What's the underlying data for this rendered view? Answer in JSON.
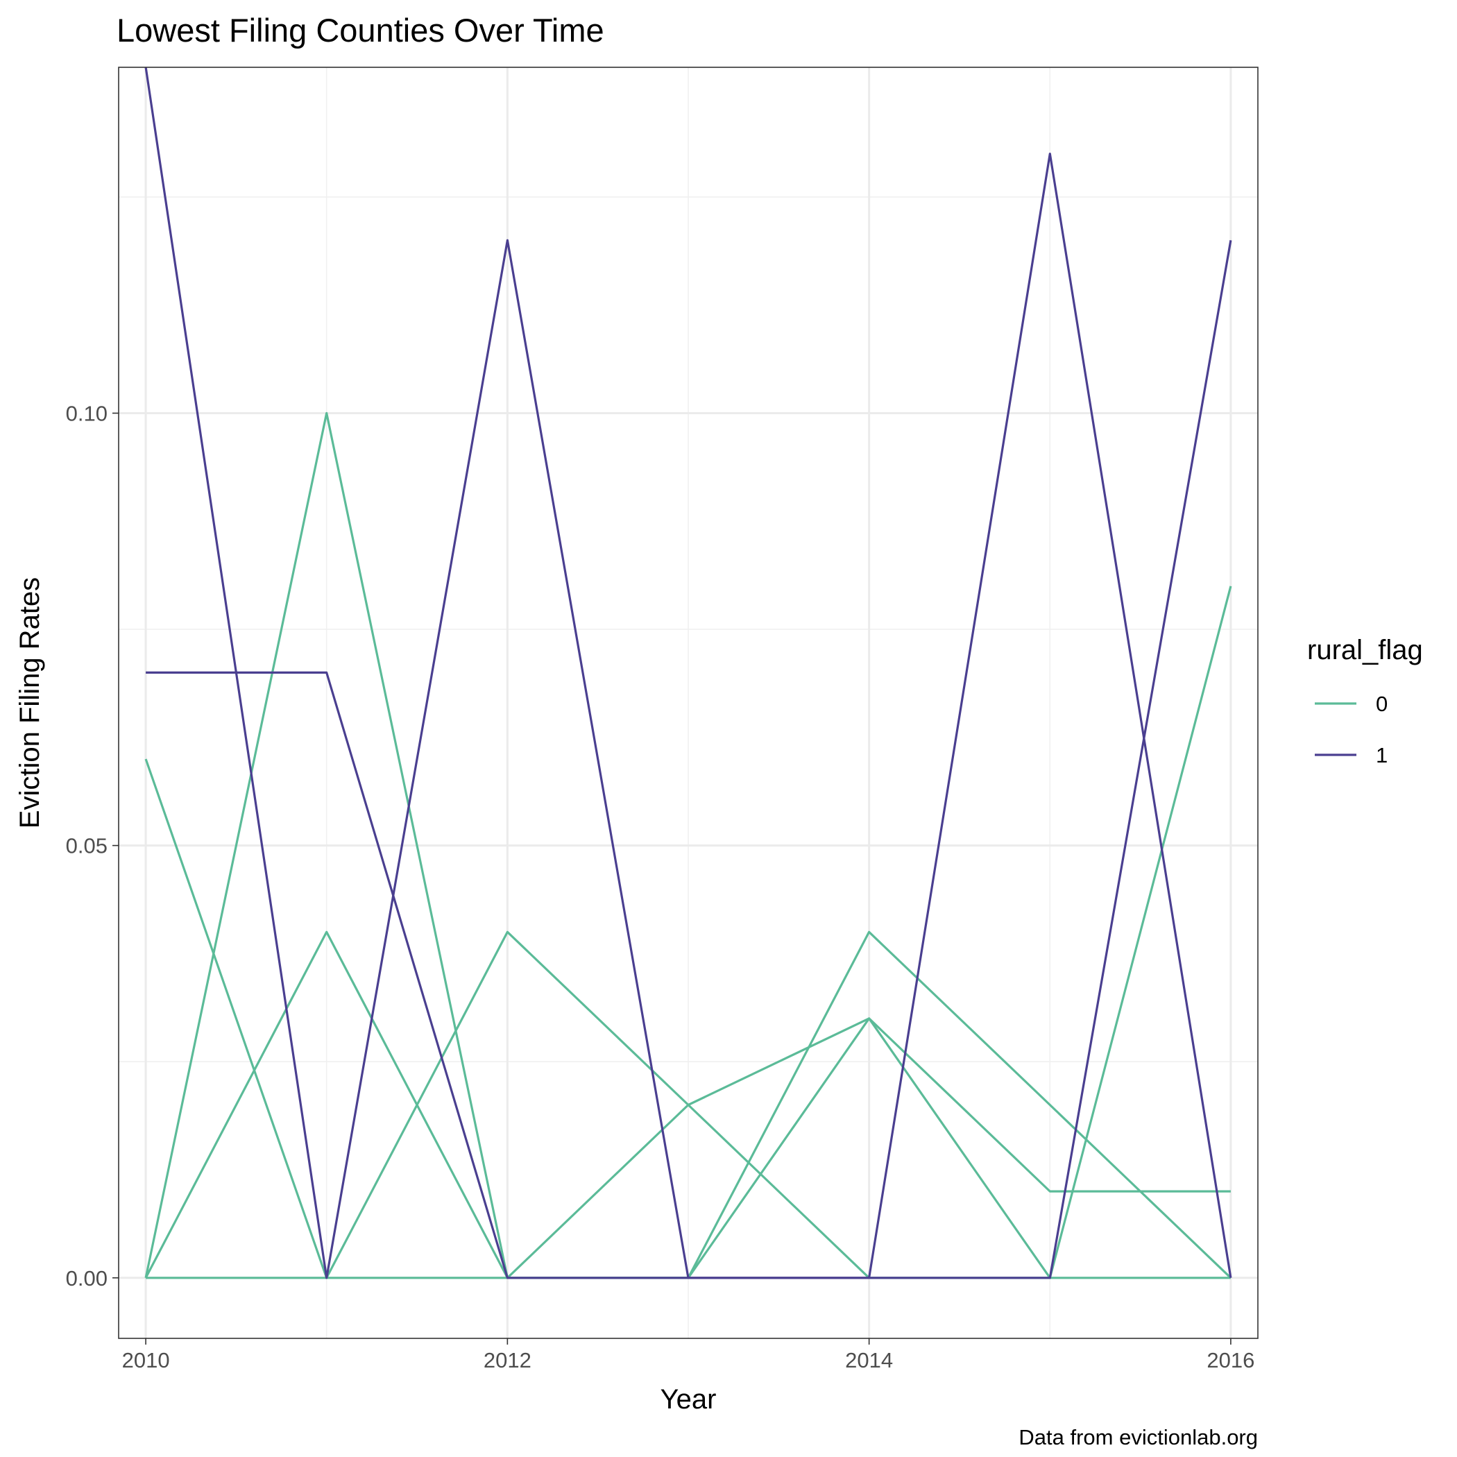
{
  "chart_data": {
    "type": "line",
    "title": "Lowest Filing Counties Over Time",
    "xlabel": "Year",
    "ylabel": "Eviction Filing Rates",
    "caption": "Data from evictionlab.org",
    "xlim": [
      2009.85,
      2016.15
    ],
    "ylim": [
      -0.007,
      0.14
    ],
    "x_ticks": [
      2010,
      2012,
      2014,
      2016
    ],
    "x_tick_labels": [
      "2010",
      "2012",
      "2014",
      "2016"
    ],
    "y_ticks": [
      0.0,
      0.05,
      0.1
    ],
    "y_tick_labels": [
      "0.00",
      "0.05",
      "0.10"
    ],
    "grid": true,
    "legend": {
      "title": "rural_flag",
      "position": "right",
      "entries": [
        {
          "label": "0",
          "color": "#5bbb98"
        },
        {
          "label": "1",
          "color": "#4a3f90"
        }
      ]
    },
    "x": [
      2010,
      2011,
      2012,
      2013,
      2014,
      2015,
      2016
    ],
    "series": [
      {
        "group": "0",
        "color": "#5bbb98",
        "values": [
          0.06,
          0.0,
          0.04,
          0.02,
          0.0,
          0.0,
          0.08
        ]
      },
      {
        "group": "0",
        "color": "#5bbb98",
        "values": [
          0.0,
          0.1,
          0.0,
          0.0,
          0.04,
          0.02,
          0.0
        ]
      },
      {
        "group": "0",
        "color": "#5bbb98",
        "values": [
          0.0,
          0.04,
          0.0,
          0.02,
          0.03,
          0.01,
          0.01
        ]
      },
      {
        "group": "0",
        "color": "#5bbb98",
        "values": [
          0.0,
          0.0,
          0.0,
          0.0,
          0.03,
          0.0,
          0.0
        ]
      },
      {
        "group": "1",
        "color": "#4a3f90",
        "values": [
          0.14,
          0.0,
          0.12,
          0.0,
          0.0,
          0.13,
          0.0
        ]
      },
      {
        "group": "1",
        "color": "#4a3f90",
        "values": [
          0.07,
          0.07,
          0.0,
          0.0,
          0.0,
          0.0,
          0.12
        ]
      }
    ]
  }
}
